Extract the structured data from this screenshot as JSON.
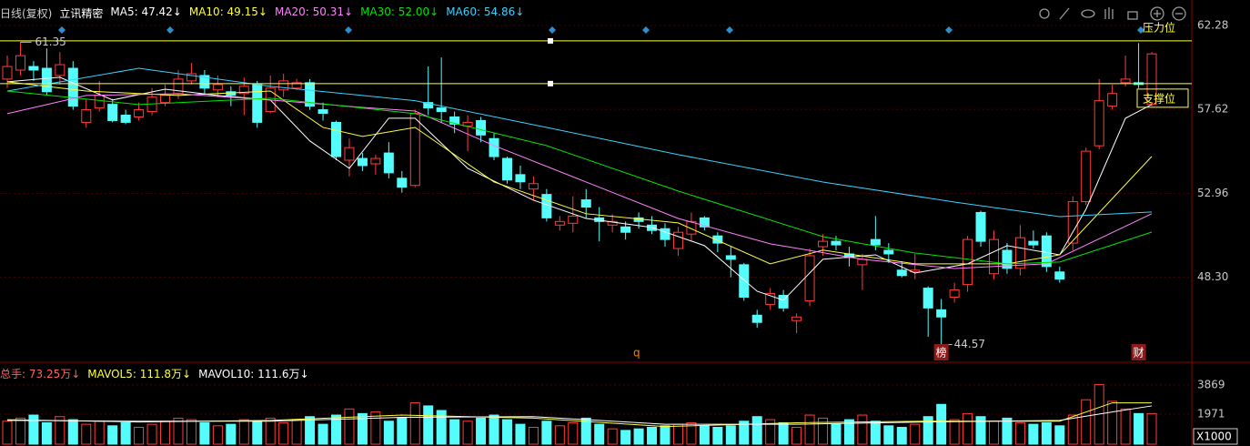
{
  "chart_data": [
    {
      "type": "candlestick",
      "period": "日线(复权)",
      "stock": "立讯精密",
      "indicators": [
        {
          "label": "MA5: 47.42↓",
          "color": "#ffffff"
        },
        {
          "label": "MA10: 49.15↓",
          "color": "#ffff40"
        },
        {
          "label": "MA20: 50.31↓",
          "color": "#ff80ff"
        },
        {
          "label": "MA30: 52.00↓",
          "color": "#00e600"
        },
        {
          "label": "MA60: 54.86↓",
          "color": "#3ad1ff"
        }
      ],
      "open": [
        59.3,
        59.8,
        60.0,
        59.9,
        59.5,
        59.9,
        56.9,
        57.7,
        57.9,
        57.3,
        57.2,
        57.5,
        58.0,
        58.5,
        59.2,
        59.5,
        58.7,
        58.6,
        58.5,
        59.0,
        57.5,
        58.7,
        58.8,
        59.1,
        57.6,
        56.9,
        54.8,
        54.9,
        54.6,
        55.2,
        53.8,
        53.4,
        58.0,
        57.7,
        57.2,
        56.7,
        57.0,
        56.0,
        54.9,
        54.0,
        53.2,
        52.9,
        51.2,
        51.3,
        52.6,
        51.6,
        51.2,
        51.1,
        51.6,
        51.2,
        51.0,
        49.9,
        50.7,
        51.6,
        50.6,
        49.5,
        49.0,
        46.2,
        46.8,
        47.3,
        45.9,
        47.0,
        50.0,
        50.3,
        49.6,
        49.0,
        50.4,
        49.8,
        48.7,
        48.6,
        47.7,
        46.5,
        47.2,
        47.9,
        51.9,
        48.5,
        49.8,
        48.8,
        50.3,
        50.6,
        48.6,
        50.2,
        52.5,
        55.6,
        57.8,
        59.1,
        59.1,
        57.9
      ],
      "high": [
        60.6,
        61.35,
        60.3,
        61.0,
        60.8,
        60.3,
        58.2,
        59.2,
        58.2,
        57.6,
        58.0,
        58.8,
        59.0,
        59.8,
        60.2,
        59.8,
        59.5,
        58.9,
        59.4,
        59.2,
        59.5,
        59.6,
        59.3,
        59.3,
        58.0,
        57.0,
        56.0,
        55.2,
        55.1,
        55.8,
        54.2,
        57.6,
        60.0,
        60.5,
        57.5,
        57.3,
        57.2,
        56.3,
        55.0,
        54.5,
        53.9,
        53.2,
        51.7,
        52.8,
        53.2,
        52.2,
        51.8,
        51.4,
        51.9,
        51.7,
        51.3,
        51.1,
        51.9,
        51.7,
        50.8,
        50.0,
        49.1,
        46.5,
        47.7,
        47.6,
        46.3,
        49.9,
        50.7,
        50.6,
        50.0,
        49.6,
        51.7,
        50.2,
        49.2,
        49.6,
        47.8,
        47.1,
        48.0,
        50.6,
        52.0,
        50.9,
        50.2,
        51.2,
        50.9,
        50.8,
        48.9,
        52.8,
        55.5,
        59.3,
        59.0,
        60.6,
        61.3,
        60.8
      ],
      "low": [
        58.8,
        59.5,
        59.2,
        58.4,
        59.0,
        57.6,
        56.6,
        57.5,
        56.9,
        56.8,
        57.0,
        57.3,
        57.8,
        58.2,
        59.0,
        58.5,
        58.3,
        57.8,
        57.3,
        56.6,
        57.4,
        58.3,
        58.7,
        57.6,
        57.0,
        54.8,
        53.9,
        54.2,
        54.0,
        53.8,
        53.0,
        53.3,
        57.3,
        56.9,
        56.3,
        55.3,
        55.8,
        54.8,
        53.5,
        53.2,
        52.6,
        51.4,
        50.9,
        50.8,
        51.6,
        50.3,
        50.8,
        50.4,
        51.0,
        50.7,
        50.0,
        49.5,
        50.3,
        50.9,
        49.7,
        48.3,
        47.0,
        45.5,
        46.5,
        46.4,
        45.2,
        46.7,
        49.5,
        49.8,
        48.9,
        47.6,
        49.8,
        49.1,
        48.3,
        48.2,
        45.0,
        44.57,
        46.9,
        47.5,
        50.0,
        48.2,
        48.5,
        48.4,
        49.9,
        48.6,
        48.0,
        49.8,
        52.3,
        55.4,
        57.6,
        58.9,
        58.8,
        57.8
      ],
      "close": [
        60.0,
        60.6,
        59.8,
        58.6,
        60.1,
        57.8,
        57.6,
        58.4,
        57.0,
        56.9,
        57.6,
        58.3,
        58.4,
        59.3,
        59.6,
        58.8,
        59.0,
        58.4,
        58.9,
        56.9,
        58.8,
        59.2,
        59.1,
        57.8,
        57.4,
        55.0,
        55.5,
        54.5,
        54.9,
        54.1,
        53.3,
        57.4,
        57.7,
        57.5,
        56.8,
        56.9,
        56.2,
        55.0,
        53.7,
        53.6,
        53.5,
        51.6,
        51.4,
        51.7,
        52.2,
        51.4,
        51.4,
        50.8,
        51.4,
        50.9,
        50.4,
        50.8,
        51.4,
        51.1,
        50.2,
        49.3,
        47.2,
        45.8,
        47.4,
        46.6,
        46.1,
        49.5,
        50.3,
        50.1,
        49.4,
        49.3,
        50.1,
        49.6,
        48.4,
        48.7,
        46.6,
        46.1,
        47.6,
        50.4,
        50.3,
        50.4,
        48.8,
        50.5,
        50.1,
        48.9,
        48.2,
        52.5,
        55.3,
        58.1,
        58.5,
        59.3,
        59.0,
        60.7
      ],
      "up_color": "#ff3c3c",
      "down_color": "#54fcfc",
      "ylim": [
        43.74,
        62.78
      ],
      "yticks": [
        62.28,
        57.62,
        52.96,
        {
          "value": 48.3,
          "label": "48.30"
        }
      ],
      "ma_lines": [
        {
          "color": "#ffffff",
          "x": [
            0,
            4,
            8,
            12,
            16,
            20,
            23,
            26,
            29,
            31,
            35,
            40,
            44,
            49,
            53,
            57,
            59,
            62,
            66,
            69,
            73,
            76,
            80,
            82,
            85,
            87
          ],
          "values": [
            59.15,
            59.4,
            58.14,
            58.74,
            58.39,
            58.14,
            55.87,
            54.35,
            57.13,
            57.13,
            54.35,
            52.58,
            51.57,
            51.07,
            50.06,
            47.53,
            47.03,
            49.3,
            49.55,
            48.54,
            49.05,
            50.06,
            49.55,
            52.08,
            57.13,
            57.89
          ]
        },
        {
          "color": "#ffff40",
          "x": [
            0,
            6,
            13,
            20,
            24,
            27,
            31,
            37,
            44,
            51,
            58,
            62,
            69,
            76,
            80,
            87
          ],
          "values": [
            59.15,
            58.64,
            58.39,
            58.64,
            56.62,
            56.12,
            56.62,
            53.59,
            51.83,
            51.32,
            49.05,
            49.81,
            49.05,
            49.05,
            49.55,
            55.01
          ]
        },
        {
          "color": "#ff80ff",
          "x": [
            0,
            6,
            13,
            20,
            27,
            31,
            37,
            44,
            51,
            58,
            65,
            72,
            79,
            87
          ],
          "values": [
            57.38,
            58.39,
            58.49,
            58.14,
            57.73,
            57.53,
            55.61,
            53.59,
            51.57,
            50.16,
            49.3,
            48.79,
            49.05,
            51.83
          ]
        },
        {
          "color": "#00e600",
          "x": [
            0,
            10,
            20,
            31,
            41,
            51,
            62,
            69,
            76,
            80,
            87
          ],
          "values": [
            58.64,
            57.89,
            58.24,
            57.38,
            55.61,
            53.09,
            50.56,
            49.65,
            49.05,
            49.15,
            50.81
          ]
        },
        {
          "color": "#3ad1ff",
          "x": [
            0,
            10,
            20,
            31,
            41,
            51,
            62,
            72,
            80,
            87
          ],
          "values": [
            58.64,
            59.9,
            58.9,
            58.1,
            56.62,
            55.11,
            53.59,
            52.48,
            51.67,
            51.93
          ]
        }
      ],
      "resistance": 61.42,
      "resistance_label": "压力位",
      "support": 59.05,
      "support_label": "支撑位",
      "markers": [
        "q",
        "榜",
        "财"
      ]
    },
    {
      "type": "bar",
      "indicators": [
        {
          "label": "总手: 73.25万↓",
          "color": "#ff6060"
        },
        {
          "label": "MAVOL5: 111.8万↓",
          "color": "#ffff40"
        },
        {
          "label": "MAVOL10: 111.6万↓",
          "color": "#ffffff"
        }
      ],
      "values": [
        1500,
        1700,
        1900,
        1400,
        1800,
        1600,
        1300,
        1500,
        1200,
        1400,
        1100,
        1300,
        1500,
        1700,
        1600,
        1400,
        1200,
        1300,
        1600,
        1500,
        1700,
        1400,
        1600,
        1800,
        1300,
        1900,
        2300,
        2000,
        2100,
        1500,
        1700,
        2700,
        2500,
        2200,
        1600,
        1500,
        1700,
        1900,
        1600,
        1300,
        1100,
        1500,
        1200,
        1400,
        1700,
        1300,
        1000,
        900,
        1000,
        1100,
        1200,
        1300,
        1400,
        1200,
        1100,
        1200,
        1500,
        1800,
        1600,
        1400,
        1100,
        1900,
        1700,
        1300,
        1600,
        1900,
        1500,
        1200,
        1100,
        1300,
        1800,
        2600,
        1600,
        2000,
        1800,
        1500,
        1700,
        1400,
        1300,
        1400,
        1200,
        1900,
        2900,
        3900,
        2800,
        2300,
        2000,
        2000
      ],
      "ylim": [
        0,
        5230
      ],
      "yticks": [
        1971,
        3869
      ],
      "unit_label": "X1000",
      "ma_lines": [
        {
          "color": "#ffff40",
          "x": [
            0,
            10,
            20,
            30,
            40,
            50,
            60,
            70,
            80,
            84,
            87
          ],
          "values": [
            1600,
            1450,
            1550,
            1900,
            1700,
            1150,
            1400,
            1500,
            1500,
            2700,
            2700
          ]
        },
        {
          "color": "#ffffff",
          "x": [
            0,
            10,
            20,
            30,
            40,
            50,
            60,
            70,
            80,
            84,
            87
          ],
          "values": [
            1550,
            1500,
            1500,
            1750,
            1800,
            1300,
            1300,
            1450,
            1550,
            2100,
            2500
          ]
        }
      ]
    }
  ]
}
